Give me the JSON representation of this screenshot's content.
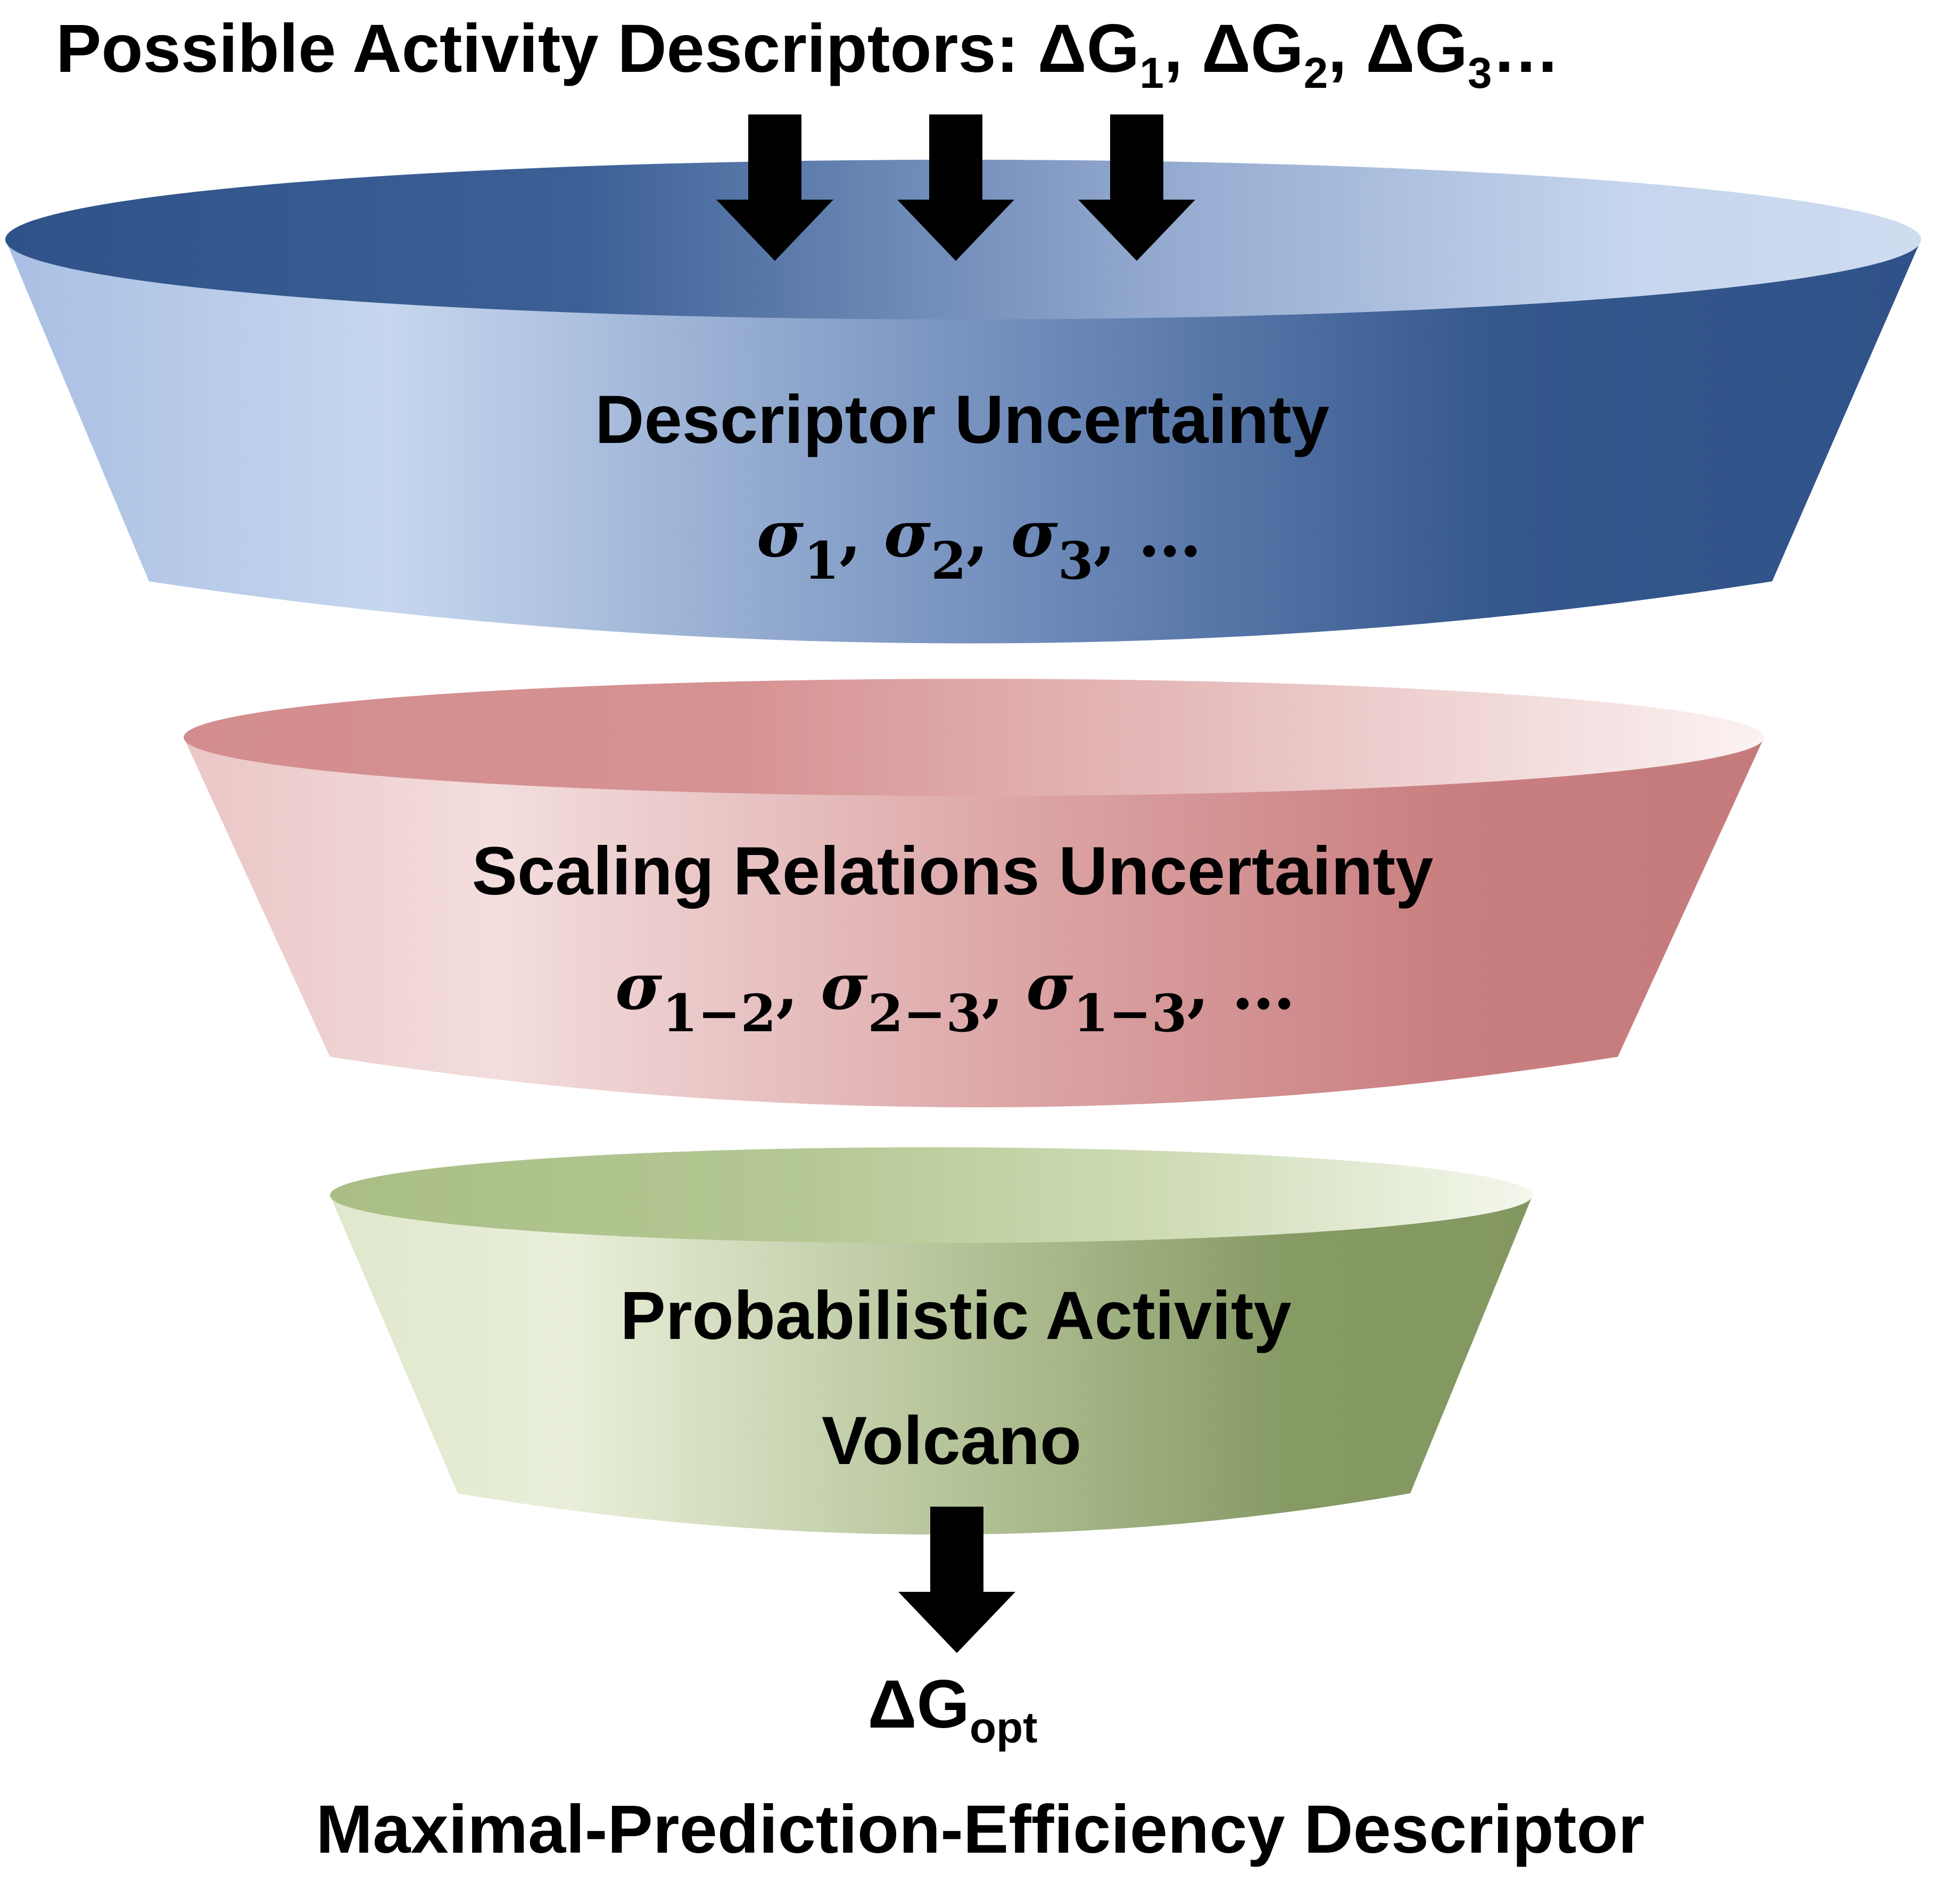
{
  "header": {
    "prefix": "Possible Activity Descriptors: ",
    "delta": "ΔG",
    "sub_1": "1",
    "sub_2": "2",
    "sub_3": "3",
    "sep": ", ",
    "ellipsis": "…"
  },
  "stages": [
    {
      "title": "Descriptor Uncertainty",
      "sigma": "σ",
      "sub_1": "1",
      "sub_2": "2",
      "sub_3": "3",
      "ellipsis": "…",
      "colors": {
        "dark": "#34578c",
        "light": "#c6d6ee"
      }
    },
    {
      "title": "Scaling Relations Uncertainty",
      "sigma": "σ",
      "sub_1": "1−2",
      "sub_2": "2−3",
      "sub_3": "1−3",
      "ellipsis": "…",
      "colors": {
        "dark": "#c97f80",
        "light": "#f3dddd"
      }
    },
    {
      "title_line1": "Probabilistic Activity",
      "title_line2": "Volcano",
      "colors": {
        "dark": "#869a64",
        "light": "#e9efd9"
      }
    }
  ],
  "result": {
    "delta": "ΔG",
    "sub": "opt",
    "label": "Maximal-Prediction-Efficiency Descriptor"
  },
  "arrow_color": "#000000"
}
